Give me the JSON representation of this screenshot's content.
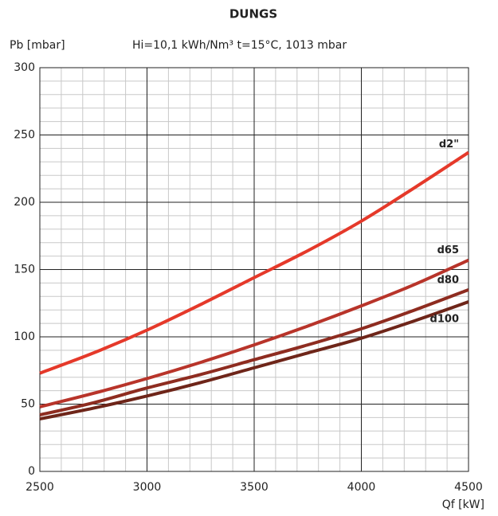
{
  "chart_data": {
    "type": "line",
    "title": "DUNGS",
    "subtitle": "Hi=10,1 kWh/Nm³ t=15°C, 1013 mbar",
    "y_label": "Pb [mbar]",
    "x_label": "Qf [kW]",
    "x": [
      2500,
      2750,
      3000,
      3250,
      3500,
      3750,
      4000,
      4250,
      4500
    ],
    "series": [
      {
        "name": "d2\"",
        "color": "#e5392a",
        "values": [
          73,
          88,
          105,
          124,
          144,
          164,
          186,
          211,
          237
        ]
      },
      {
        "name": "d65",
        "color": "#b8342a",
        "values": [
          48,
          58,
          69,
          81,
          94,
          108,
          123,
          139,
          157
        ]
      },
      {
        "name": "d80",
        "color": "#8e2c20",
        "values": [
          42,
          51,
          62,
          72,
          83,
          94,
          106,
          120,
          135
        ]
      },
      {
        "name": "d100",
        "color": "#6e2519",
        "values": [
          39,
          47,
          56,
          66,
          77,
          88,
          99,
          112,
          126
        ]
      }
    ],
    "xlim": [
      2500,
      4500
    ],
    "xticks": [
      2500,
      3000,
      3500,
      4000,
      4500
    ],
    "ylim": [
      0,
      300
    ],
    "yticks": [
      0,
      50,
      100,
      150,
      200,
      250,
      300
    ],
    "grid": true
  }
}
